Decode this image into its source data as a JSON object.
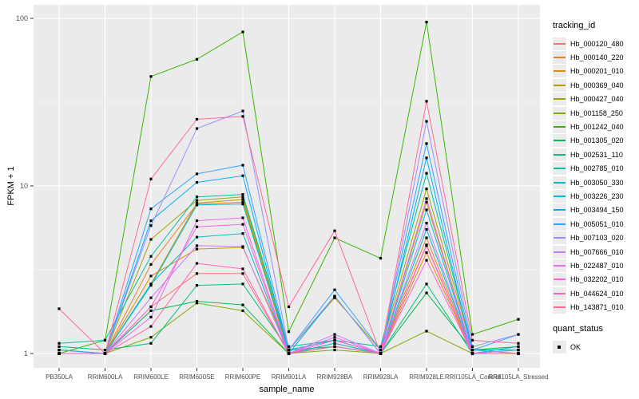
{
  "chart_data": {
    "type": "line",
    "title": "",
    "xlabel": "sample_name",
    "ylabel": "FPKM + 1",
    "y_scale": "log10",
    "ylim": [
      1,
      100
    ],
    "y_ticks": [
      1,
      10,
      100
    ],
    "y_minor_ticks": [
      3.1623,
      31.623
    ],
    "grid": true,
    "legend_position": "right",
    "categories": [
      "PB350LA",
      "RRIM600LA",
      "RRIM600LE",
      "RRIM600SE",
      "RRIM600PE",
      "RRIM901LA",
      "RRIM928BA",
      "RRIM928LA",
      "RRIM928LE",
      "RRII105LA_Control",
      "RRII105LA_Stressed"
    ],
    "series": [
      {
        "name": "Hb_000120_480",
        "color": "#F8766D",
        "values": [
          1.0,
          1.0,
          1.9,
          3.0,
          3.0,
          1.0,
          1.1,
          1.0,
          4.45,
          1.0,
          1.0
        ]
      },
      {
        "name": "Hb_000140_220",
        "color": "#EA8331",
        "values": [
          1.0,
          1.0,
          3.4,
          7.8,
          8.0,
          1.0,
          1.15,
          1.0,
          4.9,
          1.0,
          1.0
        ]
      },
      {
        "name": "Hb_000201_010",
        "color": "#D89000",
        "values": [
          1.0,
          1.0,
          2.9,
          4.2,
          4.3,
          1.05,
          1.2,
          1.0,
          4.0,
          1.0,
          1.0
        ]
      },
      {
        "name": "Hb_000369_040",
        "color": "#C09B00",
        "values": [
          1.0,
          1.0,
          2.6,
          7.9,
          8.3,
          1.0,
          2.2,
          1.0,
          8.0,
          1.0,
          1.0
        ]
      },
      {
        "name": "Hb_000427_040",
        "color": "#A3A500",
        "values": [
          1.0,
          1.0,
          4.8,
          8.2,
          8.6,
          1.05,
          2.15,
          1.05,
          9.6,
          1.05,
          1.0
        ]
      },
      {
        "name": "Hb_001158_250",
        "color": "#7CAE00",
        "values": [
          1.0,
          1.0,
          1.25,
          2.0,
          1.8,
          1.0,
          1.05,
          1.0,
          1.36,
          1.0,
          1.0
        ]
      },
      {
        "name": "Hb_001242_040",
        "color": "#39B600",
        "values": [
          1.0,
          1.2,
          45,
          57,
          83,
          1.35,
          4.9,
          3.7,
          95,
          1.3,
          1.6
        ]
      },
      {
        "name": "Hb_001305_020",
        "color": "#00BB4E",
        "values": [
          1.05,
          1.0,
          1.8,
          2.05,
          1.95,
          1.0,
          1.1,
          1.0,
          2.3,
          1.05,
          1.1
        ]
      },
      {
        "name": "Hb_002531_110",
        "color": "#00BF7D",
        "values": [
          1.1,
          1.05,
          1.15,
          2.55,
          2.6,
          1.05,
          1.1,
          1.0,
          2.6,
          1.0,
          1.05
        ]
      },
      {
        "name": "Hb_002785_010",
        "color": "#00C1A3",
        "values": [
          1.15,
          1.2,
          3.8,
          8.6,
          8.9,
          1.1,
          1.2,
          1.1,
          11.9,
          1.05,
          1.05
        ]
      },
      {
        "name": "Hb_003050_330",
        "color": "#00BFC4",
        "values": [
          1.0,
          1.0,
          2.6,
          4.95,
          5.2,
          1.0,
          1.15,
          1.0,
          5.5,
          1.0,
          1.0
        ]
      },
      {
        "name": "Hb_003226_230",
        "color": "#00BAE0",
        "values": [
          1.05,
          1.0,
          2.55,
          7.7,
          7.8,
          1.05,
          1.2,
          1.0,
          7.2,
          1.0,
          1.05
        ]
      },
      {
        "name": "Hb_003494_150",
        "color": "#00B0F6",
        "values": [
          1.0,
          1.0,
          6.2,
          10.5,
          11.5,
          1.0,
          2.2,
          1.0,
          14.7,
          1.0,
          1.1
        ]
      },
      {
        "name": "Hb_005051_010",
        "color": "#35A2FF",
        "values": [
          1.05,
          1.0,
          7.3,
          11.8,
          13.3,
          1.05,
          2.4,
          1.05,
          17.9,
          1.05,
          1.3
        ]
      },
      {
        "name": "Hb_007103_020",
        "color": "#9590FF",
        "values": [
          1.0,
          1.0,
          5.8,
          22,
          28,
          1.05,
          2.2,
          1.0,
          24.3,
          1.1,
          1.3
        ]
      },
      {
        "name": "Hb_007666_010",
        "color": "#C77CFF",
        "values": [
          1.0,
          1.0,
          2.15,
          4.4,
          4.35,
          1.0,
          1.3,
          1.0,
          6.0,
          1.0,
          1.05
        ]
      },
      {
        "name": "Hb_022487_010",
        "color": "#E76BF3",
        "values": [
          1.0,
          1.0,
          1.65,
          6.2,
          6.45,
          1.0,
          1.25,
          1.0,
          8.4,
          1.0,
          1.0
        ]
      },
      {
        "name": "Hb_032202_010",
        "color": "#FA62DB",
        "values": [
          1.0,
          1.0,
          1.9,
          5.7,
          5.9,
          1.0,
          1.2,
          1.0,
          3.6,
          1.0,
          1.0
        ]
      },
      {
        "name": "Hb_044624_010",
        "color": "#FF62BC",
        "values": [
          1.0,
          1.0,
          1.45,
          3.45,
          3.2,
          1.0,
          1.1,
          1.0,
          4.4,
          1.0,
          1.0
        ]
      },
      {
        "name": "Hb_143871_010",
        "color": "#FF6A98",
        "values": [
          1.85,
          1.0,
          11,
          25,
          26,
          1.9,
          5.4,
          1.0,
          32,
          1.2,
          1.15
        ]
      }
    ]
  },
  "legend": {
    "tracking_title": "tracking_id",
    "quant_title": "quant_status",
    "quant_value": "OK"
  },
  "colors": {
    "panel_bg": "#EBEBEB",
    "grid_major": "#FFFFFF",
    "grid_minor": "#F7F7F7",
    "axis_text": "#4D4D4D",
    "point": "#000000"
  }
}
